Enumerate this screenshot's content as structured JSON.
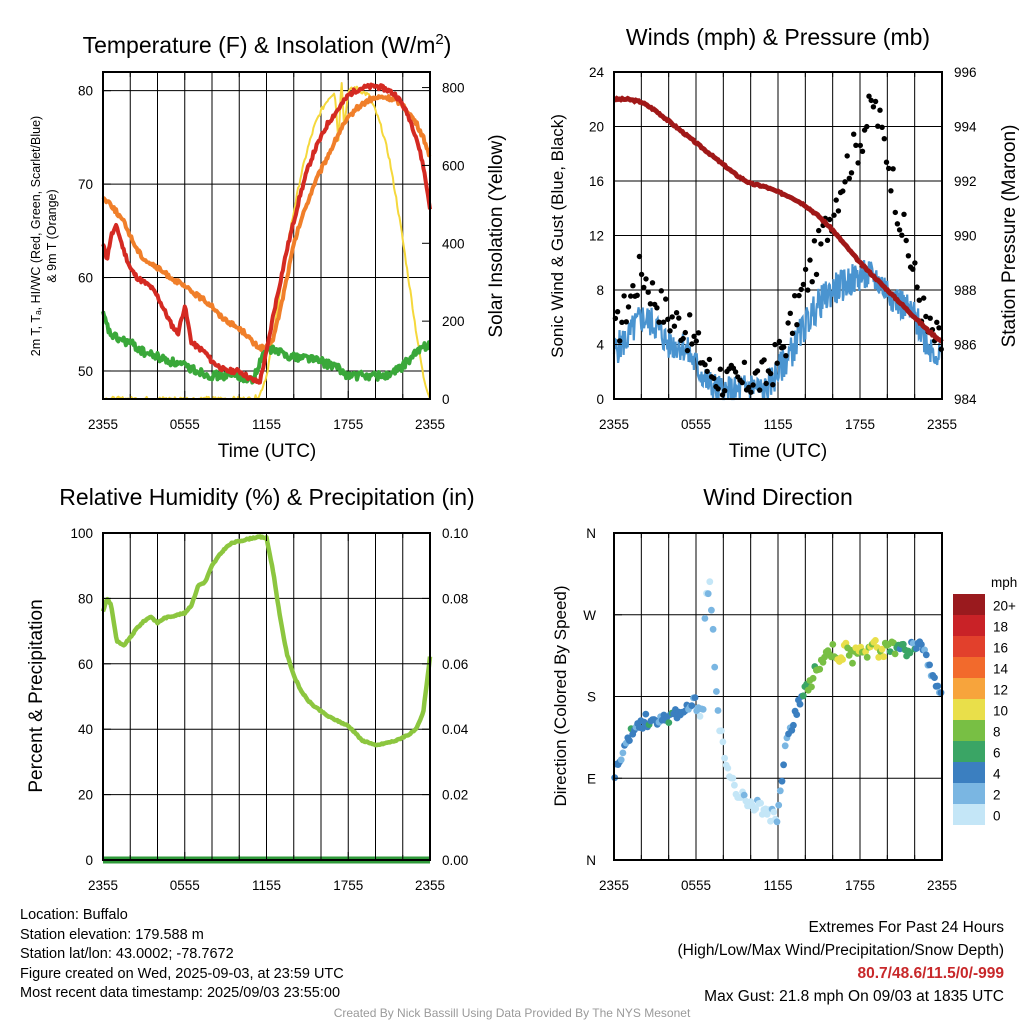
{
  "colors": {
    "red": "#d42a22",
    "green": "#3aa83a",
    "orange": "#f07f2a",
    "yellow": "#f5d83c",
    "blue": "#4a94d0",
    "black": "#000000",
    "maroon": "#a01818",
    "rh": "#8cc63f",
    "precip": "#2f9a3a"
  },
  "x_tick_labels": [
    "2355",
    "0555",
    "1155",
    "1755",
    "2355"
  ],
  "panels": [
    {
      "key": "temp",
      "title": "Temperature (F) & Insolation (W/m",
      "title_sup": "2",
      "title_end": ")",
      "xlabel": "Time (UTC)",
      "ylabel_left_1": "2m T, Tₐ, HI/WC (Red, Green, Scarlet/Blue)",
      "ylabel_left_2": "& 9m T (Orange)",
      "ylabel_right": "Solar Insolation (Yellow)",
      "yticks_left": [
        "50",
        "60",
        "70",
        "80"
      ],
      "yticks_right": [
        "0",
        "200",
        "400",
        "600",
        "800"
      ]
    },
    {
      "key": "wind",
      "title": "Winds (mph) & Pressure (mb)",
      "xlabel": "Time (UTC)",
      "ylabel_left": "Sonic Wind & Gust (Blue, Black)",
      "ylabel_right": "Station Pressure (Maroon)",
      "yticks_left": [
        "0",
        "4",
        "8",
        "12",
        "16",
        "20",
        "24"
      ],
      "yticks_right": [
        "984",
        "986",
        "988",
        "990",
        "992",
        "994",
        "996"
      ]
    },
    {
      "key": "rh",
      "title": "Relative Humidity (%) & Precipitation (in)",
      "ylabel_left": "Percent & Precipitation",
      "yticks_left": [
        "0",
        "20",
        "40",
        "60",
        "80",
        "100"
      ],
      "yticks_right": [
        "0.00",
        "0.02",
        "0.04",
        "0.06",
        "0.08",
        "0.10"
      ]
    },
    {
      "key": "dir",
      "title": "Wind Direction",
      "ylabel_left": "Direction (Colored By Speed)",
      "yticks_left": [
        "N",
        "E",
        "S",
        "W",
        "N"
      ],
      "legend_title": "mph",
      "legend_labels": [
        "20+",
        "18",
        "16",
        "14",
        "12",
        "10",
        "8",
        "6",
        "4",
        "2",
        "0"
      ],
      "legend_colors": [
        "#9a1a1e",
        "#c92227",
        "#e2402c",
        "#f26a2c",
        "#f7a43c",
        "#e9df4a",
        "#78bf44",
        "#3aa565",
        "#3b7fc0",
        "#7ab6e2",
        "#c4e6f7"
      ]
    }
  ],
  "chart_data": [
    {
      "type": "line",
      "title": "Temperature (F) & Insolation (W/m2)",
      "xlabel": "Time (UTC)",
      "x_range_hours": [
        0,
        24
      ],
      "ylim_left": [
        47,
        82
      ],
      "ylim_right": [
        0,
        840
      ],
      "series": [
        {
          "name": "2m T",
          "axis": "left",
          "color": "red",
          "x": [
            0,
            0.3,
            0.6,
            1,
            1.5,
            2,
            2.5,
            3,
            3.5,
            4,
            4.5,
            5,
            5.5,
            6,
            6.5,
            7,
            7.5,
            8,
            8.5,
            9,
            9.5,
            10,
            10.5,
            11,
            11.5,
            12,
            12.5,
            13,
            13.5,
            14,
            14.5,
            15,
            15.5,
            16,
            16.5,
            17,
            17.5,
            18,
            18.5,
            19,
            19.5,
            20,
            20.5,
            21,
            21.5,
            22,
            22.5,
            23,
            23.5,
            24
          ],
          "y": [
            63.5,
            62,
            64.5,
            65.5,
            63,
            61,
            60,
            59.5,
            59,
            58,
            56.5,
            55,
            54,
            57,
            53,
            52.5,
            52,
            51,
            50.5,
            50,
            50,
            50,
            49.5,
            49,
            48.8,
            52,
            56,
            59.5,
            63,
            66,
            69,
            71.5,
            73.5,
            75,
            76.5,
            77.5,
            78.5,
            79.5,
            80,
            80.3,
            80.4,
            80.5,
            80.3,
            80,
            79.5,
            78.5,
            77,
            75,
            72,
            67.5
          ]
        },
        {
          "name": "Td",
          "axis": "left",
          "color": "green",
          "x": [
            0,
            0.5,
            1,
            2,
            3,
            4,
            5,
            6,
            7,
            8,
            9,
            10,
            11,
            12,
            13,
            14,
            15,
            16,
            17,
            18,
            19,
            20,
            21,
            22,
            23,
            24
          ],
          "y": [
            56,
            54,
            53.5,
            53,
            52,
            51.5,
            51,
            50.5,
            50,
            49.5,
            49.5,
            49.5,
            49,
            52.5,
            52,
            51.5,
            51.5,
            51,
            50.5,
            49.5,
            49.5,
            49.5,
            49.5,
            50.5,
            52,
            53
          ]
        },
        {
          "name": "9m T",
          "axis": "left",
          "color": "orange",
          "x": [
            0,
            0.5,
            1,
            1.5,
            2,
            2.5,
            3,
            3.5,
            4,
            4.5,
            5,
            5.5,
            6,
            6.5,
            7,
            7.5,
            8,
            8.5,
            9,
            9.5,
            10,
            10.5,
            11,
            11.5,
            12,
            12.5,
            13,
            13.5,
            14,
            14.5,
            15,
            15.5,
            16,
            16.5,
            17,
            17.5,
            18,
            18.5,
            19,
            19.5,
            20,
            20.5,
            21,
            21.5,
            22,
            22.5,
            23,
            23.5,
            24
          ],
          "y": [
            68.5,
            68,
            67,
            66,
            64.5,
            63,
            62,
            61.5,
            61,
            60.5,
            60,
            59.5,
            59,
            58.5,
            58,
            57.5,
            57,
            56,
            55.5,
            55,
            54.5,
            54,
            53,
            52.5,
            52.5,
            53.5,
            56.5,
            60,
            63.5,
            66,
            68,
            70,
            71.5,
            73,
            74.5,
            76,
            77,
            78,
            78.5,
            79,
            79.2,
            79.3,
            79.2,
            79,
            78.5,
            77.5,
            76.5,
            75,
            73
          ]
        },
        {
          "name": "Solar Insolation",
          "axis": "right",
          "color": "yellow",
          "x": [
            0,
            2,
            4,
            6,
            8,
            10,
            11,
            11.5,
            12,
            12.5,
            13,
            13.5,
            14,
            14.5,
            15,
            15.5,
            16,
            16.5,
            17,
            17.3,
            17.5,
            17.7,
            18,
            18.5,
            19,
            19.5,
            20,
            20.5,
            21,
            21.5,
            22,
            22.5,
            23,
            23.5,
            24
          ],
          "y": [
            0,
            0,
            0,
            0,
            0,
            0,
            0,
            10,
            60,
            160,
            280,
            390,
            480,
            570,
            640,
            700,
            740,
            770,
            790,
            660,
            830,
            700,
            790,
            800,
            790,
            780,
            740,
            690,
            620,
            520,
            410,
            290,
            170,
            60,
            0
          ]
        }
      ]
    },
    {
      "type": "line",
      "title": "Winds (mph) & Pressure (mb)",
      "xlabel": "Time (UTC)",
      "x_range_hours": [
        0,
        24
      ],
      "ylim_left": [
        0,
        24
      ],
      "ylim_right": [
        984,
        996
      ],
      "series": [
        {
          "name": "Sonic Wind",
          "axis": "left",
          "color": "blue",
          "x": [
            0,
            1,
            2,
            3,
            4,
            5,
            6,
            7,
            8,
            9,
            10,
            11,
            12,
            13,
            14,
            15,
            16,
            17,
            18,
            19,
            20,
            21,
            22,
            23,
            24
          ],
          "y": [
            3.5,
            4.5,
            6,
            5.5,
            4,
            4,
            2.5,
            1,
            0.5,
            0.5,
            1,
            0.5,
            2,
            3.5,
            5.5,
            7,
            8,
            8.5,
            9,
            9,
            8,
            7,
            6,
            4,
            3
          ]
        },
        {
          "name": "Gust",
          "axis": "left",
          "color": "black",
          "x": [
            0,
            1,
            2,
            3,
            4,
            5,
            6,
            7,
            8,
            9,
            10,
            11,
            12,
            13,
            14,
            15,
            16,
            17,
            18,
            19,
            20,
            21,
            22,
            23,
            24
          ],
          "y": [
            4.5,
            7,
            9.5,
            7.5,
            6,
            5.5,
            4,
            2,
            1.5,
            1,
            1.5,
            1.5,
            3,
            5.5,
            8.5,
            11,
            14,
            17,
            19,
            21.8,
            18,
            13,
            9,
            5,
            4
          ]
        },
        {
          "name": "Station Pressure",
          "axis": "right",
          "color": "maroon",
          "x": [
            0,
            1,
            2,
            3,
            4,
            5,
            6,
            7,
            8,
            9,
            10,
            11,
            12,
            13,
            14,
            15,
            16,
            17,
            18,
            19,
            20,
            21,
            22,
            23,
            24
          ],
          "y": [
            995,
            995,
            994.9,
            994.6,
            994.2,
            993.8,
            993.4,
            993,
            992.6,
            992.2,
            991.9,
            991.8,
            991.6,
            991.4,
            991.1,
            990.7,
            990.2,
            989.6,
            989,
            988.5,
            988,
            987.5,
            987,
            986.5,
            986.1
          ]
        }
      ]
    },
    {
      "type": "line",
      "title": "Relative Humidity (%) & Precipitation (in)",
      "x_range_hours": [
        0,
        24
      ],
      "ylim_left": [
        0,
        100
      ],
      "ylim_right": [
        0,
        0.1
      ],
      "series": [
        {
          "name": "Relative Humidity",
          "axis": "left",
          "color": "rh",
          "x": [
            0,
            0.3,
            0.6,
            1,
            1.5,
            2,
            2.5,
            3,
            3.5,
            4,
            4.5,
            5,
            5.5,
            6,
            6.5,
            7,
            7.5,
            8,
            8.5,
            9,
            9.5,
            10,
            10.5,
            11,
            11.5,
            12,
            12.5,
            13,
            13.5,
            14,
            14.5,
            15,
            15.5,
            16,
            16.5,
            17,
            17.5,
            18,
            18.5,
            19,
            19.5,
            20,
            20.5,
            21,
            21.5,
            22,
            22.5,
            23,
            23.5,
            24
          ],
          "y": [
            76,
            80,
            78,
            67,
            65.5,
            68,
            71,
            73,
            74.5,
            72.5,
            74,
            74.5,
            75,
            75.5,
            78,
            84,
            85,
            90,
            93,
            95.5,
            97,
            97.5,
            98,
            98.5,
            98.8,
            98.5,
            88,
            74,
            63,
            56.5,
            52,
            49,
            47,
            45.5,
            44,
            43,
            42,
            41,
            39,
            36.5,
            36,
            35,
            35.5,
            36,
            36.5,
            37.5,
            38.5,
            40,
            45,
            62
          ]
        },
        {
          "name": "Precipitation",
          "axis": "right",
          "color": "precip",
          "x": [
            0,
            24
          ],
          "y": [
            0,
            0
          ]
        }
      ]
    },
    {
      "type": "scatter",
      "title": "Wind Direction",
      "x_range_hours": [
        0,
        24
      ],
      "y_categories": [
        "N",
        "E",
        "S",
        "W",
        "N"
      ],
      "ylim_degrees": [
        0,
        360
      ],
      "points_hours": [
        0,
        0.5,
        1,
        1.5,
        2,
        2.5,
        3,
        3.5,
        4,
        4.5,
        5,
        5.5,
        6,
        6.5,
        7,
        7.5,
        8,
        8.5,
        9,
        9.5,
        10,
        10.5,
        11,
        11.5,
        12,
        12.5,
        13,
        13.5,
        14,
        14.5,
        15,
        15.5,
        16,
        16.5,
        17,
        17.5,
        18,
        18.5,
        19,
        19.5,
        20,
        20.5,
        21,
        21.5,
        22,
        22.5,
        23,
        23.5,
        24
      ],
      "points_degrees": [
        95,
        110,
        130,
        145,
        150,
        155,
        150,
        152,
        158,
        162,
        165,
        168,
        172,
        160,
        340,
        175,
        120,
        90,
        75,
        70,
        65,
        60,
        55,
        50,
        48,
        120,
        150,
        170,
        185,
        200,
        215,
        225,
        230,
        222,
        235,
        220,
        238,
        230,
        242,
        225,
        238,
        232,
        240,
        228,
        235,
        240,
        220,
        195,
        175
      ],
      "points_speed_mph": [
        3,
        3,
        4,
        4,
        4,
        4,
        4,
        3,
        4,
        4,
        4,
        3,
        2,
        1,
        1,
        2,
        0,
        1,
        0,
        1,
        0,
        1,
        0,
        0,
        2,
        3,
        4,
        4,
        6,
        7,
        7,
        8,
        8,
        9,
        9,
        8,
        10,
        8,
        10,
        9,
        8,
        7,
        6,
        5,
        4,
        4,
        3,
        3,
        3
      ]
    }
  ],
  "info": {
    "location": "Location: Buffalo",
    "elevation": "Station elevation: 179.588 m",
    "latlon": "Station lat/lon: 43.0002; -78.7672",
    "created": "Figure created on Wed, 2025-09-03, at 23:59 UTC",
    "recent": "Most recent data timestamp: 2025/09/03 23:55:00"
  },
  "extremes": {
    "title": "Extremes For Past 24 Hours",
    "subtitle": "(High/Low/Max Wind/Precipitation/Snow Depth)",
    "values": "80.7/48.6/11.5/0/-999",
    "gust": "Max Gust: 21.8 mph On 09/03 at 1835 UTC"
  },
  "credit": "Created By Nick Bassill Using Data Provided By The NYS Mesonet"
}
